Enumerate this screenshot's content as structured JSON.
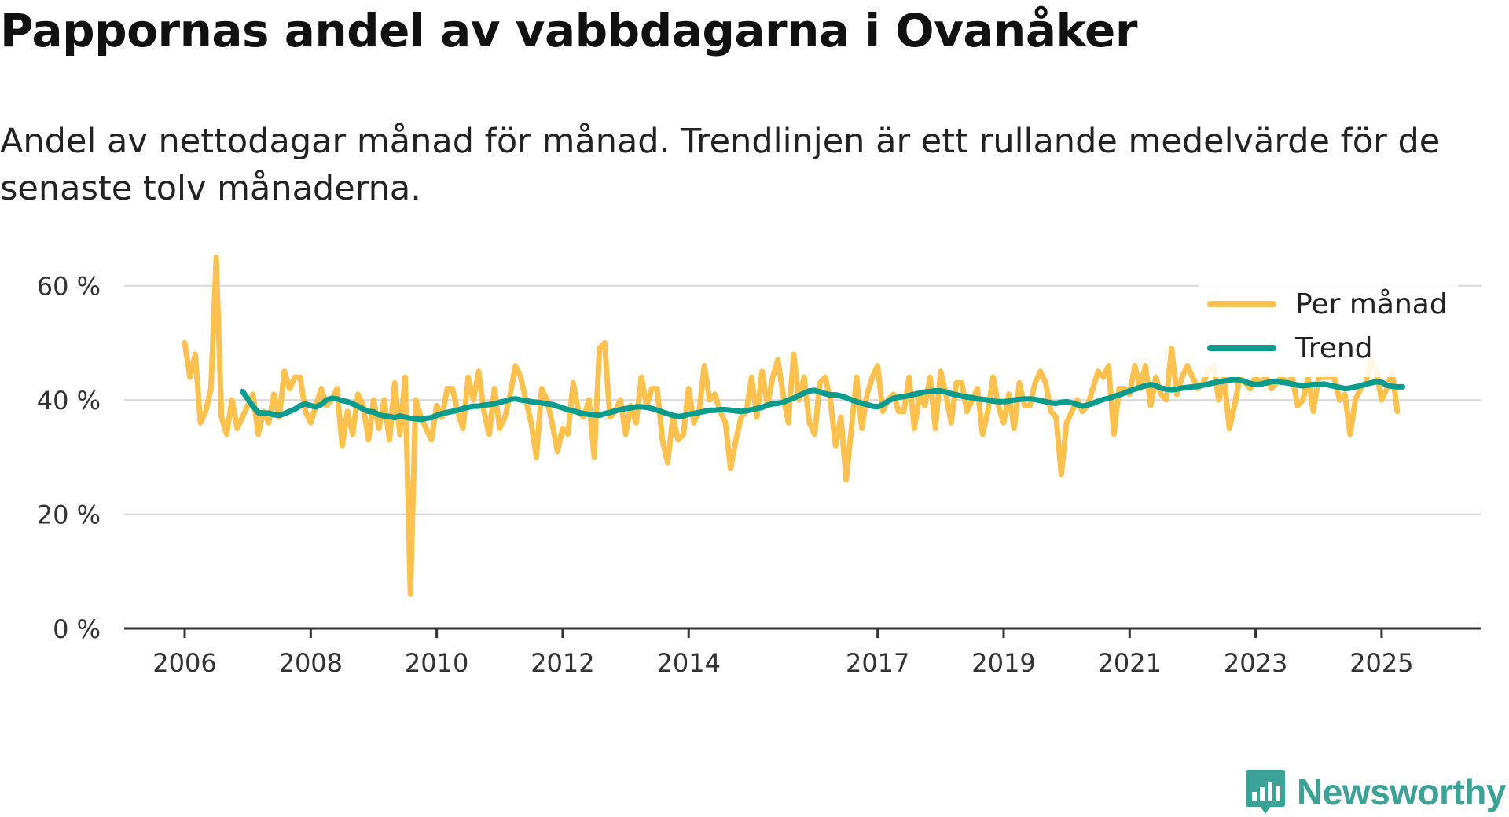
{
  "title": "Pappornas andel av vabbdagarna i Ovanåker",
  "subtitle": "Andel av nettodagar månad för månad. Trendlinjen är ett rullande medelvärde för de senaste tolv månaderna.",
  "brand": {
    "name": "Newsworthy",
    "color": "#3aa297"
  },
  "colors": {
    "monthly": "#ffc14d",
    "trend": "#0a9b8f",
    "grid": "#d9d9d9",
    "axis": "#333333",
    "tick_text": "#333333"
  },
  "chart_data": {
    "type": "line",
    "title": "Pappornas andel av vabbdagarna i Ovanåker",
    "xlabel": "",
    "ylabel": "",
    "ylim": [
      0,
      70
    ],
    "xlim": [
      2006.0,
      2027.3
    ],
    "y_ticks": [
      0,
      20,
      40,
      60
    ],
    "y_tick_labels": [
      "0 %",
      "20 %",
      "40 %",
      "60 %"
    ],
    "x_ticks": [
      2006,
      2008,
      2010,
      2012,
      2014,
      2017,
      2019,
      2021,
      2023,
      2025
    ],
    "x_tick_labels": [
      "2006",
      "2008",
      "2010",
      "2012",
      "2014",
      "2017",
      "2019",
      "2021",
      "2023",
      "2025"
    ],
    "grid": true,
    "legend": {
      "position": "top-right",
      "entries": [
        "Per månad",
        "Trend"
      ]
    },
    "series": [
      {
        "name": "Per månad",
        "x_start": 2006.0,
        "x_step": 0.08333,
        "values": [
          50,
          44,
          48,
          36,
          38,
          42,
          65,
          37,
          34,
          40,
          35,
          37,
          39,
          41,
          34,
          38,
          36,
          41,
          37,
          45,
          42,
          44,
          44,
          38,
          36,
          39,
          42,
          39,
          40,
          42,
          32,
          38,
          34,
          41,
          39,
          33,
          40,
          35,
          40,
          33,
          43,
          34,
          44,
          6,
          40,
          37,
          35,
          33,
          39,
          37,
          42,
          42,
          38,
          35,
          44,
          40,
          45,
          38,
          34,
          42,
          35,
          37,
          41,
          46,
          44,
          40,
          36,
          30,
          42,
          40,
          36,
          31,
          35,
          34,
          43,
          38,
          37,
          40,
          30,
          49,
          50,
          37,
          38,
          40,
          34,
          39,
          36,
          44,
          39,
          42,
          42,
          33,
          29,
          37,
          33,
          34,
          42,
          36,
          38,
          46,
          40,
          41,
          38,
          36,
          28,
          33,
          37,
          38,
          44,
          37,
          45,
          39,
          44,
          47,
          41,
          36,
          48,
          40,
          44,
          36,
          34,
          43,
          44,
          40,
          32,
          37,
          26,
          35,
          44,
          35,
          41,
          44,
          46,
          38,
          40,
          41,
          38,
          38,
          44,
          35,
          41,
          39,
          44,
          35,
          45,
          41,
          36,
          43,
          43,
          38,
          40,
          42,
          34,
          38,
          44,
          39,
          36,
          41,
          35,
          43,
          39,
          39,
          43,
          45,
          43,
          38,
          37,
          27,
          36,
          38,
          40,
          38,
          39,
          42,
          45,
          44,
          46,
          34,
          42,
          42,
          41,
          46,
          42,
          46,
          39,
          44,
          41,
          40,
          49,
          41,
          44,
          46,
          44,
          42,
          43,
          45,
          46,
          40,
          44,
          35,
          39,
          44,
          43,
          42,
          44,
          43,
          44,
          42,
          43,
          44,
          43,
          44,
          39,
          40,
          44,
          38,
          44,
          44,
          44,
          44,
          40,
          41,
          34,
          40,
          42,
          43,
          47,
          45,
          40,
          42,
          45,
          38
        ],
        "color": "#ffc14d"
      },
      {
        "name": "Trend",
        "x_start": 2006.9167,
        "x_step": 0.08333,
        "values": [
          41.5,
          40.2,
          38.9,
          37.8,
          37.7,
          37.7,
          37.4,
          37.3,
          37.6,
          38.0,
          38.4,
          39.0,
          39.3,
          39.0,
          38.8,
          39.2,
          40.0,
          40.3,
          40.2,
          39.9,
          39.7,
          39.3,
          38.9,
          38.4,
          38.0,
          37.9,
          37.4,
          37.2,
          37.1,
          36.9,
          37.2,
          37.0,
          36.8,
          36.7,
          36.6,
          36.8,
          36.9,
          37.3,
          37.6,
          37.8,
          38.0,
          38.2,
          38.5,
          38.7,
          38.9,
          38.9,
          39.1,
          39.2,
          39.3,
          39.6,
          39.8,
          40.1,
          40.2,
          40.0,
          39.9,
          39.7,
          39.6,
          39.5,
          39.3,
          39.2,
          38.9,
          38.6,
          38.3,
          38.1,
          37.8,
          37.6,
          37.5,
          37.4,
          37.3,
          37.6,
          37.8,
          38.1,
          38.3,
          38.5,
          38.6,
          38.8,
          38.8,
          38.7,
          38.5,
          38.2,
          37.9,
          37.6,
          37.3,
          37.1,
          37.2,
          37.5,
          37.6,
          37.8,
          38.0,
          38.2,
          38.2,
          38.3,
          38.3,
          38.2,
          38.1,
          38.0,
          38.1,
          38.3,
          38.5,
          38.7,
          39.1,
          39.3,
          39.4,
          39.6,
          40.0,
          40.3,
          40.8,
          41.2,
          41.6,
          41.7,
          41.4,
          41.1,
          40.9,
          40.9,
          40.7,
          40.4,
          40.0,
          39.7,
          39.4,
          39.2,
          38.9,
          38.8,
          39.2,
          39.8,
          40.3,
          40.5,
          40.6,
          40.8,
          41.0,
          41.2,
          41.4,
          41.5,
          41.6,
          41.6,
          41.4,
          41.1,
          40.9,
          40.7,
          40.5,
          40.4,
          40.2,
          40.1,
          40.0,
          39.8,
          39.7,
          39.7,
          39.8,
          40.0,
          40.1,
          40.2,
          40.2,
          40.1,
          39.9,
          39.7,
          39.5,
          39.4,
          39.6,
          39.7,
          39.5,
          39.2,
          38.9,
          39.1,
          39.4,
          39.8,
          40.1,
          40.3,
          40.6,
          40.9,
          41.2,
          41.6,
          41.9,
          42.2,
          42.5,
          42.7,
          42.5,
          42.1,
          41.9,
          41.8,
          41.9,
          42.1,
          42.2,
          42.3,
          42.4,
          42.6,
          42.8,
          43.0,
          43.2,
          43.3,
          43.5,
          43.6,
          43.5,
          43.2,
          42.9,
          42.7,
          42.8,
          43.0,
          43.2,
          43.3,
          43.1,
          43.0,
          42.8,
          42.6,
          42.5,
          42.6,
          42.7,
          42.7,
          42.8,
          42.6,
          42.4,
          42.2,
          42.0,
          42.1,
          42.3,
          42.5,
          42.8,
          43.0,
          43.2,
          43.1,
          42.6,
          42.4,
          42.3,
          42.3
        ]
      }
    ]
  }
}
